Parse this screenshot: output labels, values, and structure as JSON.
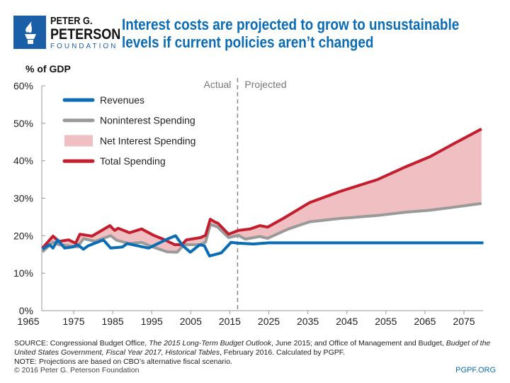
{
  "header": {
    "logo": {
      "line1": "PETER G.",
      "line2": "PETERSON",
      "line3": "FOUNDATION"
    },
    "title": "Interest costs are projected to grow to unsustainable levels if current policies aren’t changed"
  },
  "colors": {
    "revenues": "#0b6cb6",
    "noninterest": "#9a9a9a",
    "net_interest": "#efbfc1",
    "total": "#c41e2e",
    "title": "#0b6cb6"
  },
  "chart_data": {
    "type": "line",
    "ylabel": "% of GDP",
    "ylim": [
      0,
      60
    ],
    "xlim": [
      1965,
      2080
    ],
    "yticks": [
      "0%",
      "10%",
      "20%",
      "30%",
      "40%",
      "50%",
      "60%"
    ],
    "xticks": [
      "1965",
      "1975",
      "1985",
      "1995",
      "2005",
      "2015",
      "2025",
      "2035",
      "2045",
      "2055",
      "2065",
      "2075"
    ],
    "annotations": {
      "actual": "Actual",
      "projected": "Projected",
      "divider_year": 2017
    },
    "legend_position": "top-left",
    "grid": false,
    "series": [
      {
        "name": "Revenues",
        "type": "line",
        "points": [
          [
            1967,
            16.4
          ],
          [
            1968.8,
            17.6
          ],
          [
            1969.7,
            16.7
          ],
          [
            1970.9,
            18.9
          ],
          [
            1972.7,
            16.7
          ],
          [
            1974.8,
            17
          ],
          [
            1976,
            17.6
          ],
          [
            1977.5,
            16.4
          ],
          [
            1978.7,
            17.3
          ],
          [
            1982.6,
            18.9
          ],
          [
            1984.5,
            16.7
          ],
          [
            1987.5,
            17
          ],
          [
            1988.7,
            17.9
          ],
          [
            1994.2,
            16.7
          ],
          [
            1999,
            19.1
          ],
          [
            2001.1,
            20
          ],
          [
            2002.9,
            17.4
          ],
          [
            2004.9,
            15.6
          ],
          [
            2007.3,
            17.6
          ],
          [
            2008.5,
            17.3
          ],
          [
            2009.8,
            14.6
          ],
          [
            2012.8,
            15.4
          ],
          [
            2015.3,
            18.2
          ],
          [
            2017.2,
            18
          ],
          [
            2021,
            17.8
          ],
          [
            2025,
            18.1
          ],
          [
            2080,
            18.1
          ]
        ]
      },
      {
        "name": "Noninterest Spending",
        "type": "line",
        "points": [
          [
            1967,
            15.7
          ],
          [
            1969.7,
            18.3
          ],
          [
            1971.2,
            17.6
          ],
          [
            1976,
            17
          ],
          [
            1977.5,
            19.2
          ],
          [
            1980.5,
            18.5
          ],
          [
            1984.5,
            20
          ],
          [
            1986,
            18.8
          ],
          [
            1989.3,
            17.9
          ],
          [
            1992.4,
            18.2
          ],
          [
            1995.5,
            16.9
          ],
          [
            1999,
            15.7
          ],
          [
            2001.5,
            15.6
          ],
          [
            2003.3,
            17.6
          ],
          [
            2007.5,
            17.6
          ],
          [
            2008.8,
            18.3
          ],
          [
            2010,
            23
          ],
          [
            2011.8,
            22.4
          ],
          [
            2014.7,
            19.5
          ],
          [
            2017.2,
            20.1
          ],
          [
            2019,
            19.1
          ],
          [
            2022.7,
            19.8
          ],
          [
            2024.7,
            19.3
          ],
          [
            2030,
            21.8
          ],
          [
            2035.4,
            23.7
          ],
          [
            2043.2,
            24.6
          ],
          [
            2052.9,
            25.4
          ],
          [
            2060.1,
            26.3
          ],
          [
            2066.3,
            26.8
          ],
          [
            2072.3,
            27.6
          ],
          [
            2079.5,
            28.6
          ]
        ]
      },
      {
        "name": "Net Interest Spending",
        "type": "area",
        "description_of_values": "difference between Total Spending and Noninterest Spending"
      },
      {
        "name": "Total Spending",
        "type": "line",
        "points": [
          [
            1967,
            16.7
          ],
          [
            1969.7,
            19.9
          ],
          [
            1971.2,
            18.5
          ],
          [
            1973.7,
            18.9
          ],
          [
            1975.5,
            18
          ],
          [
            1976.6,
            20.4
          ],
          [
            1979.7,
            19.9
          ],
          [
            1981.5,
            21
          ],
          [
            1984.3,
            22.7
          ],
          [
            1985.5,
            21.4
          ],
          [
            1986.4,
            22
          ],
          [
            1989.3,
            20.8
          ],
          [
            1992.4,
            21.8
          ],
          [
            1995.5,
            20.1
          ],
          [
            1997.9,
            19.1
          ],
          [
            2000.9,
            17.6
          ],
          [
            2002.7,
            17.6
          ],
          [
            2003.9,
            18.9
          ],
          [
            2007.5,
            19.5
          ],
          [
            2008.8,
            20.1
          ],
          [
            2010,
            24.4
          ],
          [
            2011.1,
            23.7
          ],
          [
            2012,
            23.3
          ],
          [
            2014.7,
            20.4
          ],
          [
            2017.2,
            21.4
          ],
          [
            2020.2,
            21.8
          ],
          [
            2022.7,
            22.7
          ],
          [
            2024.7,
            22.3
          ],
          [
            2028.7,
            24.6
          ],
          [
            2035.4,
            28.8
          ],
          [
            2043.2,
            31.8
          ],
          [
            2052.9,
            35
          ],
          [
            2060.1,
            38.4
          ],
          [
            2066.3,
            41.1
          ],
          [
            2072.3,
            44.5
          ],
          [
            2079.5,
            48.5
          ]
        ]
      }
    ]
  },
  "footer": {
    "source_prefix": "SOURCE: Congressional Budget Office, ",
    "source_title1": "The 2015 Long-Term Budget Outlook",
    "source_mid": ", June 2015; and Office of Management and Budget, ",
    "source_title2": "Budget of the United States Government, Fiscal Year 2017, Historical Tables",
    "source_suffix": ", February 2016. Calculated by PGPF.",
    "note": "NOTE: Projections are based on CBO’s alternative fiscal scenario.",
    "copyright": "© 2016 Peter G. Peterson Foundation",
    "site": "PGPF.ORG"
  }
}
